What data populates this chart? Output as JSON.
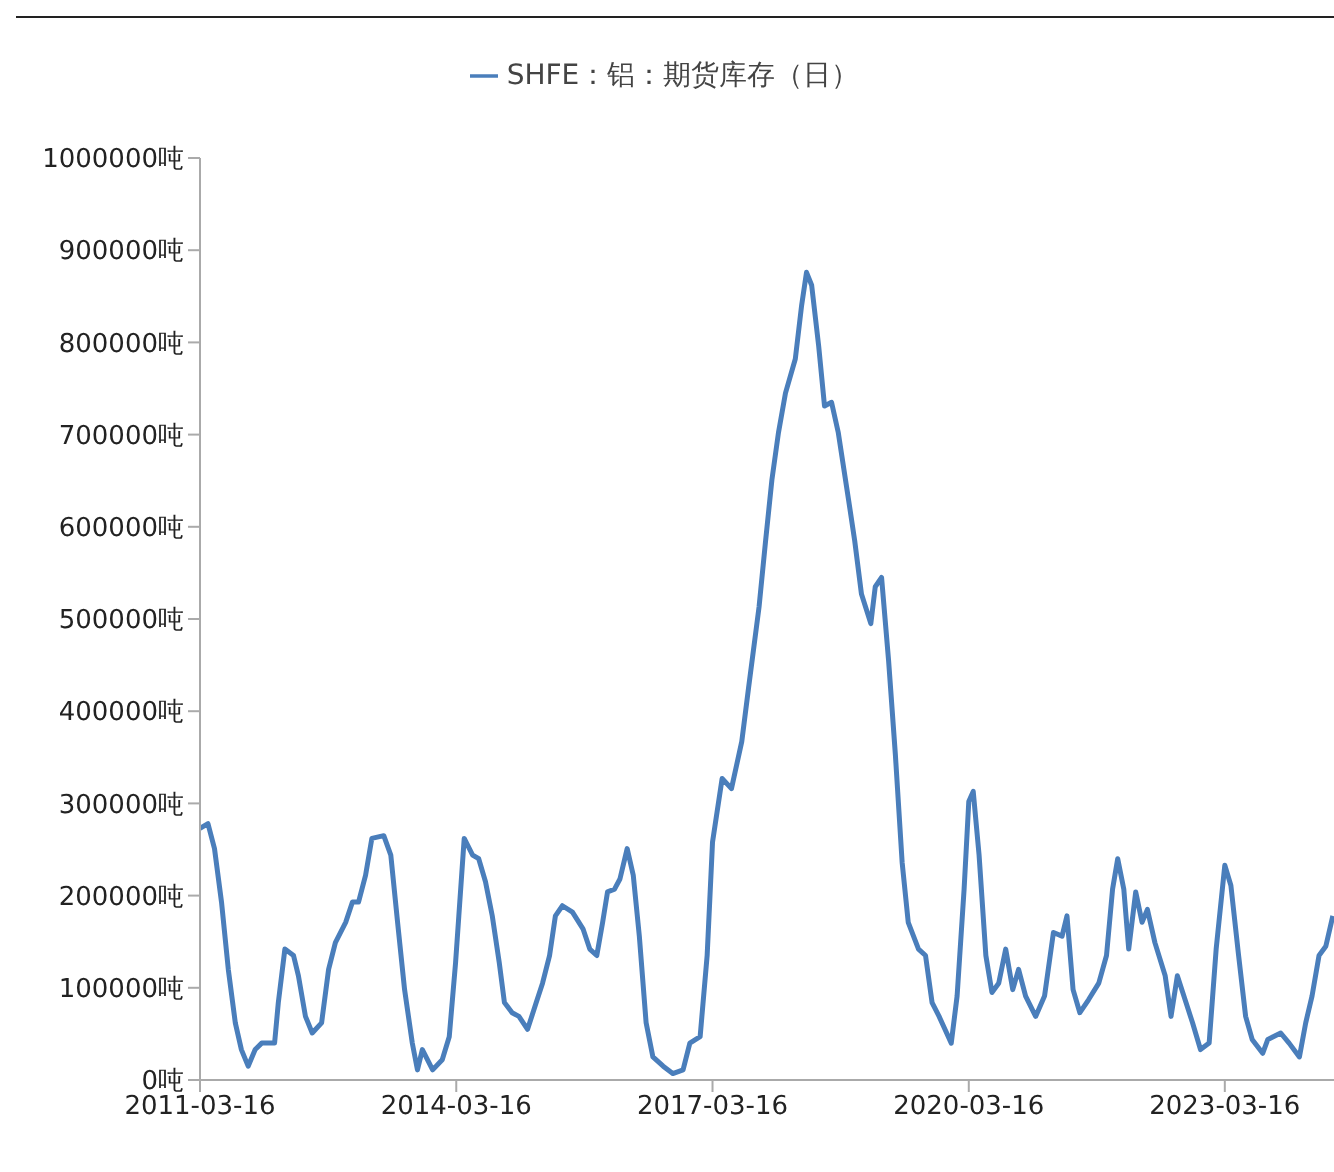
{
  "chart_data": {
    "type": "line",
    "legend": "top",
    "xlim": [
      "2011-03-16",
      "2024-06-25"
    ],
    "xticks": [
      "2011-03-16",
      "2014-03-16",
      "2017-03-16",
      "2020-03-16",
      "2023-03-16"
    ],
    "ylim": [
      0,
      1000000
    ],
    "yticks": [
      {
        "value": 0,
        "label": "0吨"
      },
      {
        "value": 100000,
        "label": "100000吨"
      },
      {
        "value": 200000,
        "label": "200000吨"
      },
      {
        "value": 300000,
        "label": "300000吨"
      },
      {
        "value": 400000,
        "label": "400000吨"
      },
      {
        "value": 500000,
        "label": "500000吨"
      },
      {
        "value": 600000,
        "label": "600000吨"
      },
      {
        "value": 700000,
        "label": "700000吨"
      },
      {
        "value": 800000,
        "label": "800000吨"
      },
      {
        "value": 900000,
        "label": "900000吨"
      },
      {
        "value": 1000000,
        "label": "1000000吨"
      }
    ],
    "x": [
      "2011-03-16",
      "2011-04-19",
      "2011-05-17",
      "2011-06-16",
      "2011-07-15",
      "2011-08-14",
      "2011-09-09",
      "2011-10-08",
      "2011-11-07",
      "2011-12-05",
      "2012-01-29",
      "2012-02-14",
      "2012-03-13",
      "2012-04-19",
      "2012-05-10",
      "2012-06-09",
      "2012-07-08",
      "2012-08-17",
      "2012-09-16",
      "2012-10-15",
      "2012-11-28",
      "2012-12-27",
      "2013-01-22",
      "2013-02-21",
      "2013-03-20",
      "2013-05-10",
      "2013-06-09",
      "2013-07-08",
      "2013-08-07",
      "2013-09-09",
      "2013-10-01",
      "2013-10-22",
      "2013-12-05",
      "2014-01-15",
      "2014-02-14",
      "2014-03-13",
      "2014-03-27",
      "2014-04-19",
      "2014-05-25",
      "2014-06-20",
      "2014-07-19",
      "2014-08-17",
      "2014-09-16",
      "2014-10-08",
      "2014-11-10",
      "2014-12-09",
      "2015-01-15",
      "2015-02-21",
      "2015-03-20",
      "2015-04-19",
      "2015-05-14",
      "2015-06-13",
      "2015-07-26",
      "2015-09-09",
      "2015-10-08",
      "2015-11-07",
      "2015-12-02",
      "2015-12-23",
      "2016-01-22",
      "2016-02-14",
      "2016-03-16",
      "2016-04-11",
      "2016-05-07",
      "2016-06-05",
      "2016-07-04",
      "2016-08-17",
      "2016-09-27",
      "2016-11-10",
      "2016-12-09",
      "2017-01-22",
      "2017-02-21",
      "2017-03-16",
      "2017-04-26",
      "2017-06-05",
      "2017-07-19",
      "2017-08-17",
      "2017-10-01",
      "2017-10-29",
      "2017-11-25",
      "2017-12-23",
      "2018-01-22",
      "2018-03-05",
      "2018-04-01",
      "2018-04-22",
      "2018-05-14",
      "2018-06-13",
      "2018-07-08",
      "2018-08-07",
      "2018-09-05",
      "2018-10-19",
      "2018-11-14",
      "2018-12-13",
      "2019-01-22",
      "2019-02-10",
      "2019-03-09",
      "2019-04-08",
      "2019-05-07",
      "2019-06-05",
      "2019-07-01",
      "2019-08-14",
      "2019-09-13",
      "2019-10-11",
      "2019-11-10",
      "2019-12-05",
      "2020-01-01",
      "2020-01-26",
      "2020-02-25",
      "2020-03-16",
      "2020-04-04",
      "2020-04-29",
      "2020-05-28",
      "2020-06-23",
      "2020-07-22",
      "2020-08-21",
      "2020-09-20",
      "2020-10-15",
      "2020-11-14",
      "2020-12-27",
      "2021-02-03",
      "2021-03-13",
      "2021-04-19",
      "2021-05-10",
      "2021-06-05",
      "2021-07-04",
      "2021-08-10",
      "2021-09-23",
      "2021-10-26",
      "2021-11-21",
      "2021-12-13",
      "2022-01-08",
      "2022-01-29",
      "2022-02-28",
      "2022-03-27",
      "2022-04-19",
      "2022-05-21",
      "2022-07-04",
      "2022-07-29",
      "2022-08-25",
      "2022-10-01",
      "2022-10-29",
      "2022-12-02",
      "2023-01-08",
      "2023-02-07",
      "2023-03-16",
      "2023-04-11",
      "2023-05-14",
      "2023-06-13",
      "2023-07-11",
      "2023-08-25",
      "2023-09-16",
      "2023-11-10",
      "2023-12-16",
      "2024-01-29",
      "2024-02-25",
      "2024-03-23",
      "2024-04-22",
      "2024-05-21",
      "2024-06-20"
    ],
    "series": [
      {
        "name": "SHFE：铝：期货库存（日）",
        "color": "#4a7ebb",
        "values": [
          273000,
          278000,
          251000,
          193000,
          120000,
          62000,
          33000,
          15000,
          33000,
          40000,
          40000,
          84000,
          142000,
          135000,
          113000,
          69000,
          51000,
          62000,
          120000,
          149000,
          171000,
          193000,
          193000,
          222000,
          262000,
          265000,
          244000,
          171000,
          98000,
          40000,
          11000,
          33000,
          11000,
          22000,
          47000,
          127000,
          178000,
          262000,
          244000,
          240000,
          215000,
          178000,
          127000,
          84000,
          73000,
          69000,
          55000,
          84000,
          105000,
          135000,
          178000,
          189000,
          182000,
          164000,
          142000,
          135000,
          171000,
          204000,
          207000,
          218000,
          251000,
          222000,
          156000,
          62000,
          25000,
          15000,
          7000,
          11000,
          40000,
          47000,
          135000,
          258000,
          327000,
          316000,
          367000,
          425000,
          513000,
          585000,
          651000,
          702000,
          745000,
          782000,
          840000,
          876000,
          862000,
          796000,
          731000,
          735000,
          702000,
          629000,
          585000,
          527000,
          495000,
          535000,
          545000,
          455000,
          353000,
          236000,
          171000,
          142000,
          135000,
          84000,
          69000,
          55000,
          40000,
          91000,
          207000,
          302000,
          313000,
          244000,
          135000,
          95000,
          105000,
          142000,
          98000,
          120000,
          91000,
          69000,
          91000,
          160000,
          156000,
          178000,
          98000,
          73000,
          87000,
          105000,
          135000,
          207000,
          240000,
          207000,
          142000,
          204000,
          171000,
          185000,
          149000,
          113000,
          69000,
          113000,
          84000,
          62000,
          33000,
          40000,
          142000,
          233000,
          211000,
          135000,
          69000,
          44000,
          29000,
          44000,
          51000,
          40000,
          25000,
          62000,
          91000,
          135000,
          145000,
          178000
        ]
      }
    ]
  }
}
